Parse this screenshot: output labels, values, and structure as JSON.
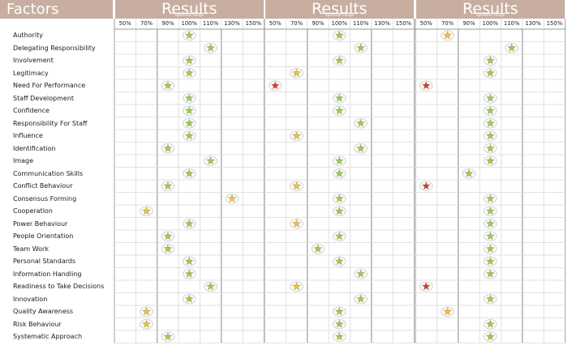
{
  "header": {
    "factors_label": "Factors",
    "panels": [
      {
        "title": "Results",
        "subtitle": "optimum range"
      },
      {
        "title": "Results",
        "subtitle": "optimum range"
      },
      {
        "title": "Results",
        "subtitle": "optimum range"
      }
    ]
  },
  "scale": [
    "50%",
    "70%",
    "90%",
    "100%",
    "110%",
    "130%",
    "150%"
  ],
  "colors": {
    "header": "#c7aea0",
    "green": "#9ccc4a",
    "yellow": "#f2c230",
    "red": "#d93a2b",
    "grid": "#d9d9d9"
  },
  "factors": [
    {
      "name": "Authority",
      "ratings": [
        {
          "v": "100%",
          "c": "green"
        },
        {
          "v": "100%",
          "c": "green"
        },
        {
          "v": "70%",
          "c": "yellow"
        }
      ]
    },
    {
      "name": "Delegating Responsibility",
      "ratings": [
        {
          "v": "110%",
          "c": "green"
        },
        {
          "v": "110%",
          "c": "green"
        },
        {
          "v": "110%",
          "c": "green"
        }
      ]
    },
    {
      "name": "Involvement",
      "ratings": [
        {
          "v": "100%",
          "c": "green"
        },
        {
          "v": "100%",
          "c": "green"
        },
        {
          "v": "100%",
          "c": "green"
        }
      ]
    },
    {
      "name": "Legitimacy",
      "ratings": [
        {
          "v": "100%",
          "c": "green"
        },
        {
          "v": "70%",
          "c": "yellow"
        },
        {
          "v": "100%",
          "c": "green"
        }
      ]
    },
    {
      "name": "Need For Performance",
      "ratings": [
        {
          "v": "90%",
          "c": "green"
        },
        {
          "v": "50%",
          "c": "red"
        },
        {
          "v": "50%",
          "c": "red"
        }
      ]
    },
    {
      "name": "Staff Development",
      "ratings": [
        {
          "v": "100%",
          "c": "green"
        },
        {
          "v": "100%",
          "c": "green"
        },
        {
          "v": "100%",
          "c": "green"
        }
      ]
    },
    {
      "name": "Confidence",
      "ratings": [
        {
          "v": "100%",
          "c": "green"
        },
        {
          "v": "100%",
          "c": "green"
        },
        {
          "v": "100%",
          "c": "green"
        }
      ]
    },
    {
      "name": "Responsibility For Staff",
      "ratings": [
        {
          "v": "100%",
          "c": "green"
        },
        {
          "v": "110%",
          "c": "green"
        },
        {
          "v": "100%",
          "c": "green"
        }
      ]
    },
    {
      "name": "Influence",
      "ratings": [
        {
          "v": "100%",
          "c": "green"
        },
        {
          "v": "70%",
          "c": "yellow"
        },
        {
          "v": "100%",
          "c": "green"
        }
      ]
    },
    {
      "name": "Identification",
      "ratings": [
        {
          "v": "90%",
          "c": "green"
        },
        {
          "v": "110%",
          "c": "green"
        },
        {
          "v": "100%",
          "c": "green"
        }
      ]
    },
    {
      "name": "Image",
      "ratings": [
        {
          "v": "110%",
          "c": "green"
        },
        {
          "v": "100%",
          "c": "green"
        },
        {
          "v": "100%",
          "c": "green"
        }
      ]
    },
    {
      "name": "Communication Skills",
      "ratings": [
        {
          "v": "100%",
          "c": "green"
        },
        {
          "v": "100%",
          "c": "green"
        },
        {
          "v": "90%",
          "c": "green"
        }
      ]
    },
    {
      "name": "Conflict Behaviour",
      "ratings": [
        {
          "v": "90%",
          "c": "green"
        },
        {
          "v": "70%",
          "c": "yellow"
        },
        {
          "v": "50%",
          "c": "red"
        }
      ]
    },
    {
      "name": "Consensus Forming",
      "ratings": [
        {
          "v": "130%",
          "c": "yellow"
        },
        {
          "v": "100%",
          "c": "green"
        },
        {
          "v": "100%",
          "c": "green"
        }
      ]
    },
    {
      "name": "Cooperation",
      "ratings": [
        {
          "v": "70%",
          "c": "yellow"
        },
        {
          "v": "100%",
          "c": "green"
        },
        {
          "v": "100%",
          "c": "green"
        }
      ]
    },
    {
      "name": "Power Behaviour",
      "ratings": [
        {
          "v": "100%",
          "c": "green"
        },
        {
          "v": "70%",
          "c": "yellow"
        },
        {
          "v": "100%",
          "c": "green"
        }
      ]
    },
    {
      "name": "People Orientation",
      "ratings": [
        {
          "v": "90%",
          "c": "green"
        },
        {
          "v": "100%",
          "c": "green"
        },
        {
          "v": "100%",
          "c": "green"
        }
      ]
    },
    {
      "name": "Team Work",
      "ratings": [
        {
          "v": "90%",
          "c": "green"
        },
        {
          "v": "90%",
          "c": "green"
        },
        {
          "v": "100%",
          "c": "green"
        }
      ]
    },
    {
      "name": "Personal Standards",
      "ratings": [
        {
          "v": "100%",
          "c": "green"
        },
        {
          "v": "100%",
          "c": "green"
        },
        {
          "v": "100%",
          "c": "green"
        }
      ]
    },
    {
      "name": "Information Handling",
      "ratings": [
        {
          "v": "100%",
          "c": "green"
        },
        {
          "v": "110%",
          "c": "green"
        },
        {
          "v": "100%",
          "c": "green"
        }
      ]
    },
    {
      "name": "Readiness to Take Decisions",
      "ratings": [
        {
          "v": "110%",
          "c": "green"
        },
        {
          "v": "70%",
          "c": "yellow"
        },
        {
          "v": "50%",
          "c": "red"
        }
      ]
    },
    {
      "name": "Innovation",
      "ratings": [
        {
          "v": "100%",
          "c": "green"
        },
        {
          "v": "110%",
          "c": "green"
        },
        {
          "v": "100%",
          "c": "green"
        }
      ]
    },
    {
      "name": "Quality Awareness",
      "ratings": [
        {
          "v": "70%",
          "c": "yellow"
        },
        {
          "v": "100%",
          "c": "green"
        },
        {
          "v": "70%",
          "c": "yellow"
        }
      ]
    },
    {
      "name": "Risk Behaviour",
      "ratings": [
        {
          "v": "70%",
          "c": "yellow"
        },
        {
          "v": "100%",
          "c": "green"
        },
        {
          "v": "100%",
          "c": "green"
        }
      ]
    },
    {
      "name": "Systematic Approach",
      "ratings": [
        {
          "v": "90%",
          "c": "green"
        },
        {
          "v": "100%",
          "c": "green"
        },
        {
          "v": "100%",
          "c": "green"
        }
      ]
    }
  ]
}
